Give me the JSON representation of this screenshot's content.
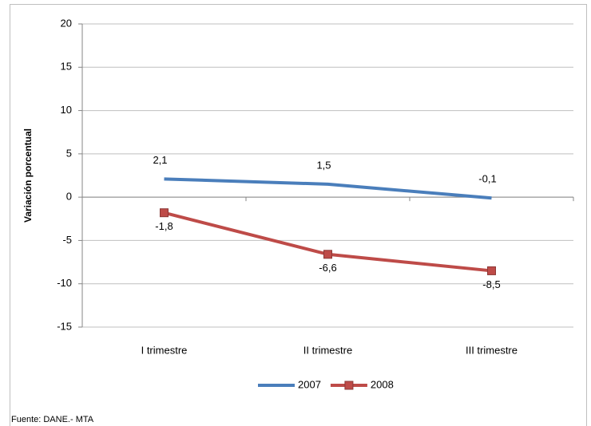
{
  "chart_data": {
    "type": "line",
    "y_label": "Variación porcentual",
    "categories": [
      "I trimestre",
      "II trimestre",
      "III trimestre"
    ],
    "series": [
      {
        "name": "2007",
        "color": "#4a7ebb",
        "values": [
          2.1,
          1.5,
          -0.1
        ],
        "value_labels": [
          "2,1",
          "1,5",
          "-0,1"
        ],
        "marker": "none"
      },
      {
        "name": "2008",
        "color": "#be4b48",
        "values": [
          -1.8,
          -6.6,
          -8.5
        ],
        "value_labels": [
          "-1,8",
          "-6,6",
          "-8,5"
        ],
        "marker": "square"
      }
    ],
    "ylim": [
      -15,
      20
    ],
    "yticks": [
      -15,
      -10,
      -5,
      0,
      5,
      10,
      15,
      20
    ],
    "grid": true,
    "legend": "bottom",
    "source": "Fuente: DANE.- MTA"
  }
}
